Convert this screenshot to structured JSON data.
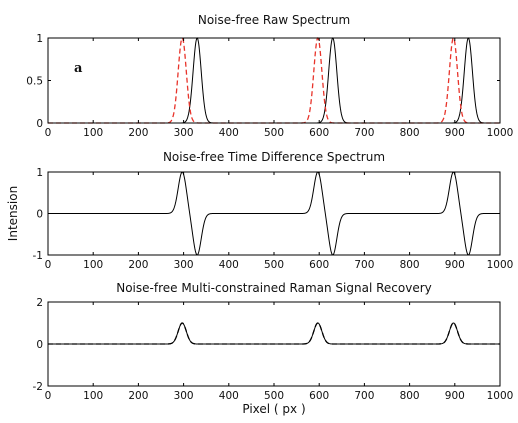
{
  "chart_data": [
    {
      "type": "line",
      "title": "Noise-free Raw Spectrum",
      "panel_label": "a",
      "xlabel": "",
      "ylabel": "",
      "xlim": [
        0,
        1000
      ],
      "ylim": [
        0,
        1
      ],
      "x_ticks": [
        0,
        100,
        200,
        300,
        400,
        500,
        600,
        700,
        800,
        900,
        1000
      ],
      "y_ticks": [
        0,
        0.5,
        1
      ],
      "x_tick_labels": [
        "0",
        "100",
        "200",
        "300",
        "400",
        "500",
        "600",
        "700",
        "800",
        "900",
        "1000"
      ],
      "y_tick_labels": [
        "0",
        "0.5",
        "1"
      ],
      "grid": false,
      "series": [
        {
          "style": "solid",
          "color": "#000000",
          "peaks": [
            {
              "center": 330,
              "height": 1.0,
              "width": 9
            },
            {
              "center": 630,
              "height": 1.0,
              "width": 9
            },
            {
              "center": 930,
              "height": 1.0,
              "width": 9
            }
          ]
        },
        {
          "style": "dashed",
          "color": "#e8332a",
          "peaks": [
            {
              "center": 297,
              "height": 1.0,
              "width": 9
            },
            {
              "center": 597,
              "height": 1.0,
              "width": 9
            },
            {
              "center": 897,
              "height": 1.0,
              "width": 9
            }
          ]
        }
      ]
    },
    {
      "type": "line",
      "title": "Noise-free Time Difference Spectrum",
      "xlabel": "",
      "ylabel": "Intension",
      "xlim": [
        0,
        1000
      ],
      "ylim": [
        -1,
        1
      ],
      "x_ticks": [
        0,
        100,
        200,
        300,
        400,
        500,
        600,
        700,
        800,
        900,
        1000
      ],
      "y_ticks": [
        -1,
        0,
        1
      ],
      "x_tick_labels": [
        "0",
        "100",
        "200",
        "300",
        "400",
        "500",
        "600",
        "700",
        "800",
        "900",
        "1000"
      ],
      "y_tick_labels": [
        "-1",
        "0",
        "1"
      ],
      "grid": false,
      "series": [
        {
          "style": "solid",
          "color": "#000000",
          "derivative_peaks": [
            {
              "positive_center": 297,
              "negative_center": 330,
              "height": 1.0,
              "width": 9
            },
            {
              "positive_center": 597,
              "negative_center": 630,
              "height": 1.0,
              "width": 9
            },
            {
              "positive_center": 897,
              "negative_center": 930,
              "height": 1.0,
              "width": 9
            }
          ]
        }
      ]
    },
    {
      "type": "line",
      "title": "Noise-free Multi-constrained Raman Signal Recovery",
      "xlabel": "Pixel ( px )",
      "ylabel": "",
      "xlim": [
        0,
        1000
      ],
      "ylim": [
        -2,
        2
      ],
      "x_ticks": [
        0,
        100,
        200,
        300,
        400,
        500,
        600,
        700,
        800,
        900,
        1000
      ],
      "y_ticks": [
        -2,
        0,
        2
      ],
      "x_tick_labels": [
        "0",
        "100",
        "200",
        "300",
        "400",
        "500",
        "600",
        "700",
        "800",
        "900",
        "1000"
      ],
      "y_tick_labels": [
        "-2",
        "0",
        "2"
      ],
      "grid": false,
      "series": [
        {
          "style": "solid",
          "color": "#000000",
          "peaks": [
            {
              "center": 297,
              "height": 1.0,
              "width": 9
            },
            {
              "center": 597,
              "height": 1.0,
              "width": 9
            },
            {
              "center": 897,
              "height": 1.0,
              "width": 9
            }
          ]
        },
        {
          "style": "dashed",
          "color": "#000000",
          "peaks": [
            {
              "center": 297,
              "height": 1.0,
              "width": 9
            },
            {
              "center": 597,
              "height": 1.0,
              "width": 9
            },
            {
              "center": 897,
              "height": 1.0,
              "width": 9
            }
          ]
        }
      ]
    }
  ]
}
